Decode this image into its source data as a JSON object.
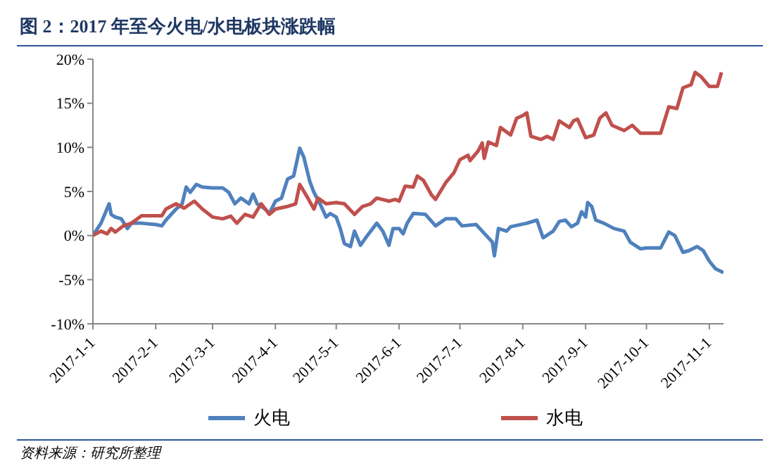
{
  "chart_data": {
    "type": "line",
    "title": "图 2：2017 年至今火电/水电板块涨跌幅",
    "annotations": [
      "资料来源：研究所整理"
    ],
    "xlim": [
      "2017-01-01",
      "2017-11-08"
    ],
    "xticks": [
      {
        "value": "2017-01-01",
        "label": "2017-1-1"
      },
      {
        "value": "2017-02-01",
        "label": "2017-2-1"
      },
      {
        "value": "2017-03-01",
        "label": "2017-3-1"
      },
      {
        "value": "2017-04-01",
        "label": "2017-4-1"
      },
      {
        "value": "2017-05-01",
        "label": "2017-5-1"
      },
      {
        "value": "2017-06-01",
        "label": "2017-6-1"
      },
      {
        "value": "2017-07-01",
        "label": "2017-7-1"
      },
      {
        "value": "2017-08-01",
        "label": "2017-8-1"
      },
      {
        "value": "2017-09-01",
        "label": "2017-9-1"
      },
      {
        "value": "2017-10-01",
        "label": "2017-10-1"
      },
      {
        "value": "2017-11-01",
        "label": "2017-11-1"
      }
    ],
    "ylim": [
      -10,
      20
    ],
    "yticks": [
      {
        "value": -10,
        "label": "-10%"
      },
      {
        "value": -5,
        "label": "-5%"
      },
      {
        "value": 0,
        "label": "0%"
      },
      {
        "value": 5,
        "label": "5%"
      },
      {
        "value": 10,
        "label": "10%"
      },
      {
        "value": 15,
        "label": "15%"
      },
      {
        "value": 20,
        "label": "20%"
      }
    ],
    "legend": "bottom",
    "marker": "none",
    "line_style": "solid",
    "series": [
      {
        "name": "火电",
        "color": "#4f81bd",
        "x": [
          "2017-01-01",
          "2017-01-05",
          "2017-01-09",
          "2017-01-10",
          "2017-01-12",
          "2017-01-15",
          "2017-01-18",
          "2017-01-20",
          "2017-01-25",
          "2017-02-01",
          "2017-02-04",
          "2017-02-06",
          "2017-02-11",
          "2017-02-14",
          "2017-02-16",
          "2017-02-18",
          "2017-02-21",
          "2017-02-24",
          "2017-03-01",
          "2017-03-06",
          "2017-03-09",
          "2017-03-12",
          "2017-03-15",
          "2017-03-19",
          "2017-03-21",
          "2017-03-23",
          "2017-03-27",
          "2017-03-29",
          "2017-04-01",
          "2017-04-04",
          "2017-04-07",
          "2017-04-10",
          "2017-04-13",
          "2017-04-15",
          "2017-04-18",
          "2017-04-20",
          "2017-04-23",
          "2017-04-26",
          "2017-04-28",
          "2017-05-01",
          "2017-05-03",
          "2017-05-05",
          "2017-05-08",
          "2017-05-10",
          "2017-05-13",
          "2017-05-16",
          "2017-05-21",
          "2017-05-24",
          "2017-05-27",
          "2017-05-29",
          "2017-06-01",
          "2017-06-03",
          "2017-06-05",
          "2017-06-08",
          "2017-06-14",
          "2017-06-19",
          "2017-06-24",
          "2017-06-29",
          "2017-07-02",
          "2017-07-09",
          "2017-07-12",
          "2017-07-14",
          "2017-07-17",
          "2017-07-18",
          "2017-07-20",
          "2017-07-24",
          "2017-07-26",
          "2017-07-28",
          "2017-08-03",
          "2017-08-08",
          "2017-08-11",
          "2017-08-16",
          "2017-08-19",
          "2017-08-22",
          "2017-08-25",
          "2017-08-28",
          "2017-08-30",
          "2017-09-01",
          "2017-09-02",
          "2017-09-04",
          "2017-09-06",
          "2017-09-10",
          "2017-09-15",
          "2017-09-20",
          "2017-09-23",
          "2017-09-28",
          "2017-10-01",
          "2017-10-08",
          "2017-10-12",
          "2017-10-15",
          "2017-10-19",
          "2017-10-22",
          "2017-10-26",
          "2017-10-29",
          "2017-11-01",
          "2017-11-04",
          "2017-11-08"
        ],
        "values": [
          0,
          1.4,
          3.6,
          2.4,
          2.1,
          1.9,
          0.8,
          1.4,
          1.4,
          1.25,
          1.1,
          1.75,
          3,
          3.6,
          5.5,
          4.9,
          5.8,
          5.5,
          5.4,
          5.4,
          4.9,
          3.6,
          4.25,
          3.6,
          4.7,
          3.6,
          3,
          2.5,
          3.9,
          4.25,
          6.4,
          6.75,
          9.9,
          8.9,
          6.1,
          4.9,
          3.6,
          2.1,
          2.5,
          2.1,
          0.8,
          -0.9,
          -1.25,
          0.5,
          -1.1,
          -0.1,
          1.4,
          0.5,
          -1.1,
          0.8,
          0.8,
          0.2,
          1.4,
          2.5,
          2.4,
          1.1,
          1.9,
          1.9,
          1.1,
          1.25,
          0.5,
          0,
          -0.75,
          -2.3,
          0.8,
          0.5,
          1,
          1.1,
          1.4,
          1.75,
          -0.25,
          0.5,
          1.6,
          1.75,
          1,
          1.4,
          2.7,
          2.1,
          3.75,
          3.3,
          1.75,
          1.4,
          0.8,
          0.5,
          -0.75,
          -1.5,
          -1.4,
          -1.4,
          0.4,
          0,
          -1.9,
          -1.7,
          -1.25,
          -1.7,
          -2.9,
          -3.75,
          -4.2
        ]
      },
      {
        "name": "水电",
        "color": "#c0504d",
        "x": [
          "2017-01-01",
          "2017-01-05",
          "2017-01-08",
          "2017-01-10",
          "2017-01-12",
          "2017-01-16",
          "2017-01-20",
          "2017-01-25",
          "2017-02-01",
          "2017-02-04",
          "2017-02-06",
          "2017-02-11",
          "2017-02-15",
          "2017-02-20",
          "2017-02-24",
          "2017-03-01",
          "2017-03-06",
          "2017-03-10",
          "2017-03-13",
          "2017-03-17",
          "2017-03-21",
          "2017-03-25",
          "2017-03-29",
          "2017-04-01",
          "2017-04-07",
          "2017-04-11",
          "2017-04-13",
          "2017-04-17",
          "2017-04-20",
          "2017-04-22",
          "2017-04-26",
          "2017-05-01",
          "2017-05-05",
          "2017-05-10",
          "2017-05-14",
          "2017-05-18",
          "2017-05-21",
          "2017-05-27",
          "2017-05-30",
          "2017-06-01",
          "2017-06-04",
          "2017-06-08",
          "2017-06-10",
          "2017-06-13",
          "2017-06-17",
          "2017-06-19",
          "2017-06-24",
          "2017-06-28",
          "2017-07-01",
          "2017-07-05",
          "2017-07-06",
          "2017-07-10",
          "2017-07-12",
          "2017-07-13",
          "2017-07-15",
          "2017-07-19",
          "2017-07-21",
          "2017-07-26",
          "2017-07-29",
          "2017-08-01",
          "2017-08-03",
          "2017-08-05",
          "2017-08-10",
          "2017-08-13",
          "2017-08-16",
          "2017-08-19",
          "2017-08-24",
          "2017-08-26",
          "2017-08-28",
          "2017-09-01",
          "2017-09-05",
          "2017-09-08",
          "2017-09-11",
          "2017-09-14",
          "2017-09-20",
          "2017-09-24",
          "2017-09-28",
          "2017-10-01",
          "2017-10-08",
          "2017-10-12",
          "2017-10-16",
          "2017-10-19",
          "2017-10-23",
          "2017-10-25",
          "2017-10-28",
          "2017-11-01",
          "2017-11-05",
          "2017-11-07"
        ],
        "values": [
          0,
          0.5,
          0.2,
          0.8,
          0.4,
          1.1,
          1.4,
          2.25,
          2.25,
          2.25,
          3,
          3.6,
          3.1,
          3.9,
          3,
          2.1,
          1.9,
          2.2,
          1.4,
          2.4,
          2.1,
          3.6,
          2.4,
          3,
          3.3,
          3.6,
          5.8,
          4.25,
          3,
          4.25,
          3.6,
          3.75,
          3.6,
          2.4,
          3.3,
          3.6,
          4.25,
          3.9,
          4.1,
          3.9,
          5.6,
          5.5,
          6.75,
          6.25,
          4.6,
          4.1,
          6,
          7.1,
          8.6,
          9.1,
          8.5,
          9.6,
          10.5,
          8.75,
          10.6,
          10.2,
          12.25,
          11.4,
          13.3,
          13.6,
          13.9,
          11.25,
          10.9,
          11.25,
          10.9,
          13,
          12.25,
          13,
          13.2,
          11.1,
          11.4,
          13.3,
          13.9,
          12.5,
          11.9,
          12.5,
          11.6,
          11.6,
          11.6,
          14.6,
          14.4,
          16.75,
          17.1,
          18.5,
          18,
          16.9,
          16.9,
          18.5
        ]
      }
    ]
  }
}
